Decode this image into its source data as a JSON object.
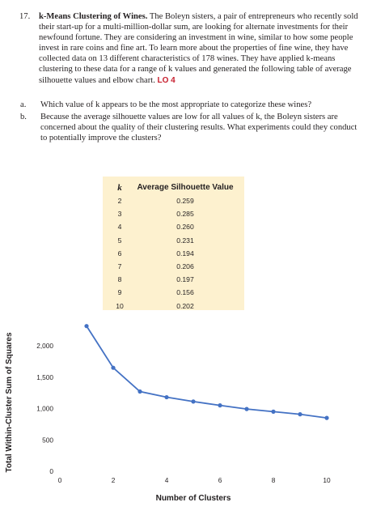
{
  "problem": {
    "number": "17.",
    "title": "k-Means Clustering of Wines.",
    "body": "The Boleyn sisters, a pair of entrepreneurs who recently sold their start-up for a multi-million-dollar sum, are looking for alternate investments for their newfound fortune. They are considering an investment in wine, similar to how some people invest in rare coins and fine art. To learn more about the properties of fine wine, they have collected data on 13 different characteristics of 178 wines. They have applied k-means clustering to these data for a range of k values and generated the following table of average silhouette values and elbow chart.",
    "lo": "LO 4",
    "parts": [
      {
        "letter": "a.",
        "text": "Which value of k appears to be the most appropriate to categorize these wines?"
      },
      {
        "letter": "b.",
        "text": "Because the average silhouette values are low for all values of k, the Boleyn sisters are concerned about the quality of their clustering results. What experiments could they conduct to potentially improve the clusters?"
      }
    ]
  },
  "silhouette_table": {
    "headers": [
      "k",
      "Average Silhouette Value"
    ],
    "rows": [
      [
        "2",
        "0.259"
      ],
      [
        "3",
        "0.285"
      ],
      [
        "4",
        "0.260"
      ],
      [
        "5",
        "0.231"
      ],
      [
        "6",
        "0.194"
      ],
      [
        "7",
        "0.206"
      ],
      [
        "8",
        "0.197"
      ],
      [
        "9",
        "0.156"
      ],
      [
        "10",
        "0.202"
      ]
    ]
  },
  "chart_data": {
    "type": "line",
    "xlabel": "Number of Clusters",
    "ylabel": "Total Within-Cluster Sum of Squares",
    "x": [
      1,
      2,
      3,
      4,
      5,
      6,
      7,
      8,
      9,
      10
    ],
    "series": [
      {
        "values": [
          2314,
          1649,
          1271,
          1180,
          1111,
          1050,
          992,
          950,
          908,
          850
        ]
      }
    ],
    "xlim": [
      0,
      10
    ],
    "ylim": [
      0,
      2400
    ],
    "xticks": [
      "0",
      "2",
      "4",
      "6",
      "8",
      "10"
    ],
    "xtick_values": [
      0,
      2,
      4,
      6,
      8,
      10
    ],
    "yticks": [
      "0",
      "500",
      "1,000",
      "1,500",
      "2,000"
    ],
    "ytick_values": [
      0,
      500,
      1000,
      1500,
      2000
    ],
    "line_color": "#4472c4",
    "grid": false
  }
}
